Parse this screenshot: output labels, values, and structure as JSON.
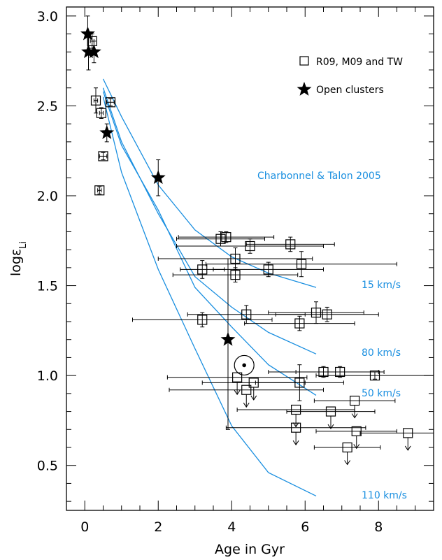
{
  "chart_data": {
    "type": "scatter",
    "title": "",
    "xlabel": "Age in Gyr",
    "ylabel": "logε_Li",
    "ylabel_main": "logε",
    "ylabel_sub": "Li",
    "xlim": [
      -0.5,
      9.5
    ],
    "ylim": [
      0.25,
      3.05
    ],
    "xticks": [
      0,
      2,
      4,
      6,
      8
    ],
    "yticks": [
      0.5,
      1.0,
      1.5,
      2.0,
      2.5,
      3.0
    ],
    "xtick_labels": [
      "0",
      "2",
      "4",
      "6",
      "8"
    ],
    "ytick_labels": [
      "0.5",
      "1.0",
      "1.5",
      "2.0",
      "2.5",
      "3.0"
    ],
    "legend": {
      "placement": "top-right",
      "entries": [
        {
          "label": "R09, M09 and TW",
          "marker": "square"
        },
        {
          "label": "Open clusters",
          "marker": "star"
        }
      ]
    },
    "model_title": "Charbonnel & Talon 2005",
    "colors": {
      "model": "#1a8fe0",
      "points": "#000000"
    },
    "models": [
      {
        "name": "15 km/s",
        "x": [
          0.5,
          1.0,
          2.0,
          3.0,
          4.0,
          5.0,
          6.3
        ],
        "y": [
          2.65,
          2.44,
          2.06,
          1.81,
          1.66,
          1.57,
          1.49
        ]
      },
      {
        "name": "80 km/s",
        "x": [
          0.5,
          1.0,
          2.0,
          3.0,
          4.0,
          5.0,
          6.3
        ],
        "y": [
          2.6,
          2.3,
          1.9,
          1.55,
          1.38,
          1.24,
          1.12
        ]
      },
      {
        "name": "50 km/s",
        "x": [
          0.5,
          1.0,
          2.0,
          3.0,
          4.0,
          5.0,
          6.3
        ],
        "y": [
          2.58,
          2.28,
          1.92,
          1.49,
          1.27,
          1.06,
          0.89
        ]
      },
      {
        "name": "110 km/s",
        "x": [
          0.5,
          1.0,
          1.5,
          2.0,
          3.0,
          4.0,
          5.0,
          6.3
        ],
        "y": [
          2.55,
          2.13,
          1.86,
          1.59,
          1.15,
          0.72,
          0.46,
          0.33
        ]
      }
    ],
    "clusters": [
      {
        "x": 0.08,
        "y": 2.9,
        "yerr": 0.1
      },
      {
        "x": 0.1,
        "y": 2.8,
        "yerr": 0.1
      },
      {
        "x": 0.25,
        "y": 2.8,
        "yerr": 0.06
      },
      {
        "x": 0.6,
        "y": 2.35,
        "yerr": 0.05
      },
      {
        "x": 2.0,
        "y": 2.1,
        "yerr": 0.1
      },
      {
        "x": 3.9,
        "y": 1.2,
        "xerr": 0.0,
        "yerr_lo": 0.5,
        "yerr_hi": 0.45
      }
    ],
    "stars": [
      {
        "x": 0.2,
        "y": 2.86,
        "xerr": 0.05,
        "yerr": 0.04,
        "upper_limit": false
      },
      {
        "x": 0.3,
        "y": 2.53,
        "xerr": 0.05,
        "yerr": 0.07,
        "upper_limit": false
      },
      {
        "x": 0.45,
        "y": 2.46,
        "xerr": 0.05,
        "yerr": 0.03,
        "upper_limit": false
      },
      {
        "x": 0.7,
        "y": 2.52,
        "xerr": 0.1,
        "yerr": 0.02,
        "upper_limit": false
      },
      {
        "x": 0.5,
        "y": 2.22,
        "xerr": 0.1,
        "yerr": 0.02,
        "upper_limit": false
      },
      {
        "x": 0.4,
        "y": 2.03,
        "xerr": 0.05,
        "yerr": 0.02,
        "upper_limit": false
      },
      {
        "x": 3.7,
        "y": 1.76,
        "xerr": 1.2,
        "yerr": 0.04,
        "upper_limit": false
      },
      {
        "x": 3.85,
        "y": 1.77,
        "xerr": 1.3,
        "yerr": 0.03,
        "upper_limit": false
      },
      {
        "x": 4.5,
        "y": 1.72,
        "xerr": 2.0,
        "yerr": 0.04,
        "upper_limit": false
      },
      {
        "x": 5.6,
        "y": 1.73,
        "xerr": 1.2,
        "yerr": 0.04,
        "upper_limit": false
      },
      {
        "x": 4.1,
        "y": 1.65,
        "xerr": 2.1,
        "yerr": 0.06,
        "upper_limit": false
      },
      {
        "x": 5.9,
        "y": 1.62,
        "xerr": 2.6,
        "yerr": 0.07,
        "upper_limit": false
      },
      {
        "x": 3.2,
        "y": 1.59,
        "xerr": 0.6,
        "yerr": 0.05,
        "upper_limit": false
      },
      {
        "x": 4.1,
        "y": 1.56,
        "xerr": 1.7,
        "yerr": 0.04,
        "upper_limit": false
      },
      {
        "x": 5.0,
        "y": 1.59,
        "xerr": 1.5,
        "yerr": 0.04,
        "upper_limit": false
      },
      {
        "x": 3.2,
        "y": 1.31,
        "xerr": 1.9,
        "yerr": 0.04,
        "upper_limit": false
      },
      {
        "x": 4.4,
        "y": 1.34,
        "xerr": 1.6,
        "yerr": 0.05,
        "upper_limit": false
      },
      {
        "x": 6.3,
        "y": 1.35,
        "xerr": 1.3,
        "yerr": 0.06,
        "upper_limit": false
      },
      {
        "x": 6.6,
        "y": 1.34,
        "xerr": 1.4,
        "yerr": 0.04,
        "upper_limit": false
      },
      {
        "x": 5.85,
        "y": 1.29,
        "xerr": 1.5,
        "yerr": 0.04,
        "upper_limit": false
      },
      {
        "x": 6.5,
        "y": 1.02,
        "xerr": 1.5,
        "yerr": 0.03,
        "upper_limit": false
      },
      {
        "x": 6.95,
        "y": 1.02,
        "xerr": 1.2,
        "yerr": 0.03,
        "upper_limit": false
      },
      {
        "x": 7.9,
        "y": 1.0,
        "xerr": 1.6,
        "yerr": 0.02,
        "upper_limit": false
      },
      {
        "x": 4.15,
        "y": 0.99,
        "xerr": 1.9,
        "yerr": 0.0,
        "upper_limit": true
      },
      {
        "x": 4.6,
        "y": 0.96,
        "xerr": 1.4,
        "yerr": 0.0,
        "upper_limit": true
      },
      {
        "x": 4.4,
        "y": 0.92,
        "xerr": 2.1,
        "yerr": 0.0,
        "upper_limit": true
      },
      {
        "x": 5.85,
        "y": 0.96,
        "xerr": 1.2,
        "yerr": 0.1,
        "upper_limit": false
      },
      {
        "x": 5.75,
        "y": 0.81,
        "xerr": 1.6,
        "yerr": 0.0,
        "upper_limit": true
      },
      {
        "x": 6.7,
        "y": 0.8,
        "xerr": 1.2,
        "yerr": 0.0,
        "upper_limit": true
      },
      {
        "x": 7.35,
        "y": 0.86,
        "xerr": 1.1,
        "yerr": 0.0,
        "upper_limit": true
      },
      {
        "x": 5.75,
        "y": 0.71,
        "xerr": 1.9,
        "yerr": 0.0,
        "upper_limit": true
      },
      {
        "x": 7.4,
        "y": 0.69,
        "xerr": 1.1,
        "yerr": 0.0,
        "upper_limit": true
      },
      {
        "x": 8.8,
        "y": 0.68,
        "xerr": 1.3,
        "yerr": 0.0,
        "upper_limit": true
      },
      {
        "x": 7.15,
        "y": 0.6,
        "xerr": 0.9,
        "yerr": 0.0,
        "upper_limit": true
      }
    ],
    "sun": {
      "x": 4.57,
      "y": 1.03
    }
  }
}
